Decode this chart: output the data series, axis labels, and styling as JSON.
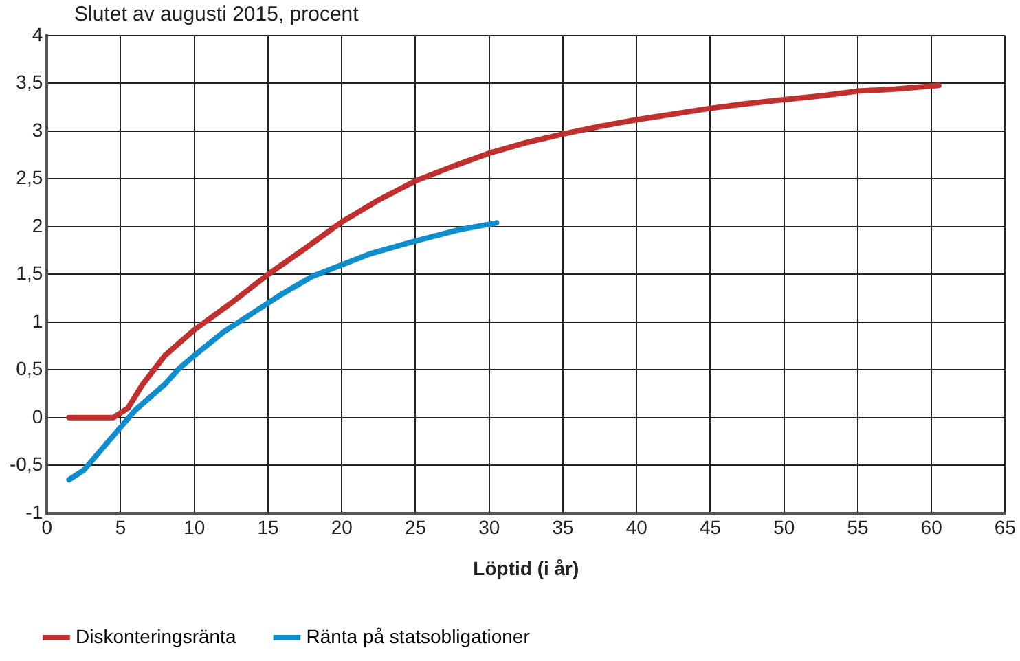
{
  "chart_data": {
    "type": "line",
    "subtitle": "Slutet av augusti 2015, procent",
    "xlabel": "Löptid (i år)",
    "xlim": [
      0,
      65
    ],
    "xticks": [
      0,
      5,
      10,
      15,
      20,
      25,
      30,
      35,
      40,
      45,
      50,
      55,
      60,
      65
    ],
    "ylim": [
      -1,
      4
    ],
    "yticks": [
      -1,
      {
        "value": -0.5,
        "label": "-0,5"
      },
      0,
      {
        "value": 0.5,
        "label": "0,5"
      },
      1,
      {
        "value": 1.5,
        "label": "1,5"
      },
      2,
      {
        "value": 2.5,
        "label": "2,5"
      },
      3,
      {
        "value": 3.5,
        "label": "3,5"
      },
      4
    ],
    "grid": true,
    "legend": "bottom",
    "marker": "none",
    "line_style": "solid",
    "series": [
      {
        "name": "Diskonteringsränta",
        "color": "#c0302e",
        "x": [
          1.5,
          4.5,
          5.5,
          6.5,
          8,
          10,
          12.5,
          15,
          17.5,
          20,
          22.5,
          25,
          27.5,
          30,
          32.5,
          35,
          37.5,
          40,
          42.5,
          45,
          47.5,
          50,
          52.5,
          55,
          57.5,
          60.5
        ],
        "values": [
          0,
          0,
          0.1,
          0.35,
          0.65,
          0.92,
          1.2,
          1.5,
          1.77,
          2.05,
          2.28,
          2.48,
          2.63,
          2.77,
          2.88,
          2.97,
          3.05,
          3.12,
          3.18,
          3.24,
          3.29,
          3.33,
          3.37,
          3.42,
          3.44,
          3.48
        ]
      },
      {
        "name": "Ränta på statsobligationer",
        "color": "#0f8dcc",
        "x": [
          1.5,
          2.5,
          5,
          6,
          8,
          9,
          10,
          12,
          14,
          16,
          18,
          20,
          22,
          25,
          28,
          30.5
        ],
        "values": [
          -0.65,
          -0.55,
          -0.1,
          0.08,
          0.35,
          0.52,
          0.65,
          0.9,
          1.1,
          1.3,
          1.48,
          1.6,
          1.72,
          1.85,
          1.97,
          2.04
        ]
      }
    ]
  }
}
